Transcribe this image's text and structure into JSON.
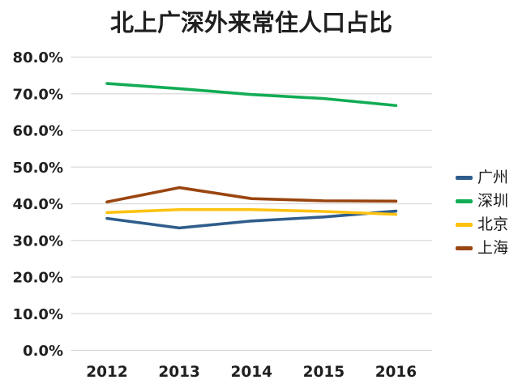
{
  "chart_data": {
    "type": "line",
    "title": "北上广深外来常住人口占比",
    "categories": [
      "2012",
      "2013",
      "2014",
      "2015",
      "2016"
    ],
    "series": [
      {
        "id": "guangzhou",
        "name": "广州",
        "color": "#2F5D8C",
        "values": [
          36.0,
          33.4,
          35.3,
          36.4,
          38.0
        ]
      },
      {
        "id": "shenzhen",
        "name": "深圳",
        "color": "#12AC55",
        "values": [
          72.8,
          71.4,
          69.8,
          68.7,
          66.8
        ]
      },
      {
        "id": "beijing",
        "name": "北京",
        "color": "#FDC210",
        "values": [
          37.6,
          38.4,
          38.4,
          37.9,
          37.1
        ]
      },
      {
        "id": "shanghai",
        "name": "上海",
        "color": "#9A4510",
        "values": [
          40.5,
          44.4,
          41.4,
          40.8,
          40.7
        ]
      }
    ],
    "xlabel": "",
    "ylabel": "",
    "ylim": [
      0,
      80
    ],
    "ytick_step": 10,
    "ytick_labels": [
      "0.0%",
      "10.0%",
      "20.0%",
      "30.0%",
      "40.0%",
      "50.0%",
      "60.0%",
      "70.0%",
      "80.0%"
    ],
    "grid": "horizontal",
    "legend_position": "right"
  },
  "colors": {
    "background": "#FFFFFF",
    "gridline": "#D9D9D9",
    "axis_line": "#D9D9D9",
    "text": "#1F1F1F"
  }
}
